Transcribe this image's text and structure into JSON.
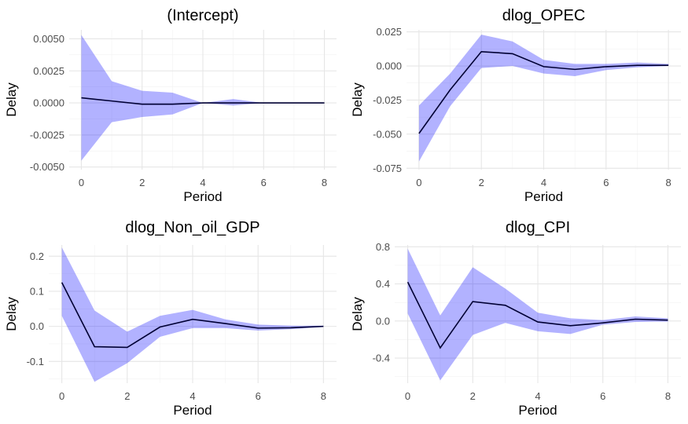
{
  "chart_data": [
    {
      "type": "line",
      "title": "(Intercept)",
      "xlabel": "Period",
      "ylabel": "Delay",
      "x": [
        0,
        1,
        2,
        3,
        4,
        5,
        6,
        7,
        8
      ],
      "xlim": [
        -0.4,
        8.4
      ],
      "ylim": [
        -0.0052,
        0.0057
      ],
      "xticks": [
        0,
        2,
        4,
        6,
        8
      ],
      "xtick_labels": [
        "0",
        "2",
        "4",
        "6",
        "8"
      ],
      "yticks": [
        -0.005,
        -0.0025,
        0,
        0.0025,
        0.005
      ],
      "ytick_labels": [
        "-0.0050",
        "-0.0025",
        "0.0000",
        "0.0025",
        "0.0050"
      ],
      "grid": true,
      "series": [
        {
          "values": [
            0.0004,
            0.00015,
            -0.0001,
            -0.0001,
            0,
            0,
            0,
            0,
            0
          ],
          "lower": [
            -0.0045,
            -0.0015,
            -0.0011,
            -0.0009,
            0,
            -0.0002,
            0,
            0,
            0
          ],
          "upper": [
            0.0053,
            0.0017,
            0.00095,
            0.0008,
            0,
            0.0003,
            0,
            0,
            0
          ]
        }
      ]
    },
    {
      "type": "line",
      "title": "dlog_OPEC",
      "xlabel": "Period",
      "ylabel": "Delay",
      "x": [
        0,
        1,
        2,
        3,
        4,
        5,
        6,
        7,
        8
      ],
      "xlim": [
        -0.4,
        8.4
      ],
      "ylim": [
        -0.076,
        0.0265
      ],
      "xticks": [
        0,
        2,
        4,
        6,
        8
      ],
      "xtick_labels": [
        "0",
        "2",
        "4",
        "6",
        "8"
      ],
      "yticks": [
        -0.075,
        -0.05,
        -0.025,
        0,
        0.025
      ],
      "ytick_labels": [
        "-0.075",
        "-0.050",
        "-0.025",
        "0.000",
        "0.025"
      ],
      "grid": true,
      "series": [
        {
          "values": [
            -0.0495,
            -0.0175,
            0.0105,
            0.009,
            -0.0005,
            -0.0025,
            -0.0005,
            0.0005,
            0.0005
          ],
          "lower": [
            -0.07,
            -0.0295,
            -0.0015,
            0,
            -0.0055,
            -0.0075,
            -0.003,
            -0.001,
            0
          ],
          "upper": [
            -0.029,
            -0.0055,
            0.023,
            0.018,
            0.0045,
            0.0015,
            0.0015,
            0.0025,
            0.0015
          ]
        }
      ]
    },
    {
      "type": "line",
      "title": "dlog_Non_oil_GDP",
      "xlabel": "Period",
      "ylabel": "Delay",
      "x": [
        0,
        1,
        2,
        3,
        4,
        5,
        6,
        7,
        8
      ],
      "xlim": [
        -0.4,
        8.4
      ],
      "ylim": [
        -0.162,
        0.232
      ],
      "xticks": [
        0,
        2,
        4,
        6,
        8
      ],
      "xtick_labels": [
        "0",
        "2",
        "4",
        "6",
        "8"
      ],
      "yticks": [
        -0.1,
        0,
        0.1,
        0.2
      ],
      "ytick_labels": [
        "-0.1",
        "0.0",
        "0.1",
        "0.2"
      ],
      "grid": true,
      "series": [
        {
          "values": [
            0.125,
            -0.058,
            -0.06,
            -0.002,
            0.02,
            0.008,
            -0.005,
            -0.004,
            0
          ],
          "lower": [
            0.03,
            -0.158,
            -0.105,
            -0.03,
            -0.005,
            -0.005,
            -0.012,
            -0.008,
            -0.002
          ],
          "upper": [
            0.225,
            0.045,
            -0.015,
            0.03,
            0.047,
            0.02,
            0.005,
            0.002,
            0.002
          ]
        }
      ]
    },
    {
      "type": "line",
      "title": "dlog_CPI",
      "xlabel": "Period",
      "ylabel": "Delay",
      "x": [
        0,
        1,
        2,
        3,
        4,
        5,
        6,
        7,
        8
      ],
      "xlim": [
        -0.4,
        8.4
      ],
      "ylim": [
        -0.67,
        0.82
      ],
      "xticks": [
        0,
        2,
        4,
        6,
        8
      ],
      "xtick_labels": [
        "0",
        "2",
        "4",
        "6",
        "8"
      ],
      "yticks": [
        -0.4,
        0,
        0.4,
        0.8
      ],
      "ytick_labels": [
        "-0.4",
        "0.0",
        "0.4",
        "0.8"
      ],
      "grid": true,
      "series": [
        {
          "values": [
            0.42,
            -0.29,
            0.21,
            0.17,
            -0.01,
            -0.05,
            -0.02,
            0.02,
            0.01
          ],
          "lower": [
            0.08,
            -0.64,
            -0.15,
            -0.02,
            -0.11,
            -0.14,
            -0.04,
            -0.01,
            -0.005
          ],
          "upper": [
            0.78,
            0.06,
            0.58,
            0.35,
            0.09,
            0.03,
            0.01,
            0.05,
            0.03
          ]
        }
      ]
    }
  ]
}
